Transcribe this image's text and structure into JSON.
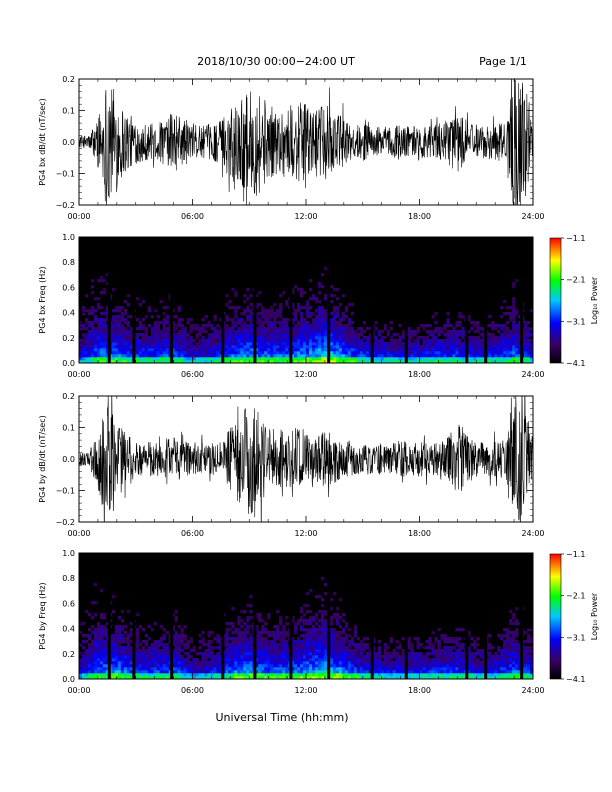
{
  "header": {
    "title": "2018/10/30  00:00−24:00 UT",
    "page": "Page 1/1"
  },
  "footer": {
    "xlabel": "Universal Time (hh:mm)"
  },
  "chart_data": [
    {
      "type": "line",
      "name": "bx-waveform",
      "ylabel": "PG4 bx dB/dt (nT/sec)",
      "xlim": [
        0,
        24
      ],
      "ylim": [
        -0.2,
        0.2
      ],
      "x_ticks": [
        "00:00",
        "06:00",
        "12:00",
        "18:00",
        "24:00"
      ],
      "y_ticks": [
        "−0.2",
        "−0.1",
        "0.0",
        "0.1",
        "0.2"
      ],
      "amplitude_envelope": {
        "x": [
          0,
          0.5,
          1.0,
          1.5,
          2.0,
          2.5,
          3.0,
          3.5,
          4.0,
          4.5,
          5.0,
          5.5,
          6.0,
          6.5,
          7.0,
          7.5,
          8.0,
          8.5,
          9.0,
          9.5,
          10.0,
          10.5,
          11.0,
          11.5,
          12.0,
          12.5,
          13.0,
          13.5,
          14.0,
          14.5,
          15.0,
          15.5,
          16.0,
          16.5,
          17.0,
          17.5,
          18.0,
          18.5,
          19.0,
          19.5,
          20.0,
          20.5,
          21.0,
          21.5,
          22.0,
          22.5,
          23.0,
          23.5,
          24.0
        ],
        "y": [
          0.02,
          0.02,
          0.08,
          0.22,
          0.16,
          0.1,
          0.07,
          0.06,
          0.06,
          0.07,
          0.1,
          0.08,
          0.06,
          0.05,
          0.06,
          0.07,
          0.12,
          0.14,
          0.16,
          0.18,
          0.12,
          0.1,
          0.12,
          0.13,
          0.12,
          0.1,
          0.12,
          0.1,
          0.08,
          0.05,
          0.06,
          0.05,
          0.05,
          0.05,
          0.06,
          0.05,
          0.06,
          0.05,
          0.06,
          0.07,
          0.1,
          0.07,
          0.06,
          0.05,
          0.06,
          0.06,
          0.22,
          0.2,
          0.08
        ]
      }
    },
    {
      "type": "heatmap",
      "name": "bx-spectrogram",
      "ylabel": "PG4 bx Freq (Hz)",
      "xlim": [
        0,
        24
      ],
      "ylim": [
        0,
        1.0
      ],
      "x_ticks": [
        "00:00",
        "06:00",
        "12:00",
        "18:00",
        "24:00"
      ],
      "y_ticks": [
        "0.0",
        "0.2",
        "0.4",
        "0.6",
        "0.8",
        "1.0"
      ],
      "colorbar": {
        "label": "Log₁₀ Power",
        "range": [
          -4.1,
          -1.1
        ],
        "ticks": [
          "−1.1",
          "−2.1",
          "−3.1",
          "−4.1"
        ]
      },
      "dropout_hours": [
        1.6,
        2.9,
        4.9,
        7.6,
        9.3,
        11.2,
        13.2,
        15.5,
        17.3,
        20.5,
        21.5,
        23.4
      ],
      "power_profile": {
        "x": [
          0,
          1,
          2,
          3,
          4,
          5,
          6,
          7,
          8,
          9,
          10,
          11,
          12,
          13,
          14,
          15,
          16,
          17,
          18,
          19,
          20,
          21,
          22,
          23,
          24
        ],
        "level": [
          0.3,
          0.5,
          0.5,
          0.45,
          0.45,
          0.5,
          0.35,
          0.4,
          0.5,
          0.55,
          0.5,
          0.5,
          0.55,
          0.6,
          0.55,
          0.45,
          0.4,
          0.4,
          0.4,
          0.45,
          0.45,
          0.4,
          0.4,
          0.5,
          0.4
        ],
        "extent_hz": [
          0.5,
          0.7,
          0.6,
          0.45,
          0.4,
          0.5,
          0.3,
          0.35,
          0.5,
          0.6,
          0.5,
          0.5,
          0.6,
          0.8,
          0.5,
          0.3,
          0.3,
          0.3,
          0.3,
          0.35,
          0.4,
          0.3,
          0.35,
          0.6,
          0.4
        ]
      }
    },
    {
      "type": "line",
      "name": "by-waveform",
      "ylabel": "PG4 by dB/dt (nT/sec)",
      "xlim": [
        0,
        24
      ],
      "ylim": [
        -0.2,
        0.2
      ],
      "x_ticks": [
        "00:00",
        "06:00",
        "12:00",
        "18:00",
        "24:00"
      ],
      "y_ticks": [
        "−0.2",
        "−0.1",
        "0.0",
        "0.1",
        "0.2"
      ],
      "amplitude_envelope": {
        "x": [
          0,
          0.5,
          1.0,
          1.5,
          2.0,
          2.5,
          3.0,
          3.5,
          4.0,
          4.5,
          5.0,
          5.5,
          6.0,
          6.5,
          7.0,
          7.5,
          8.0,
          8.5,
          9.0,
          9.5,
          10.0,
          10.5,
          11.0,
          11.5,
          12.0,
          12.5,
          13.0,
          13.5,
          14.0,
          14.5,
          15.0,
          15.5,
          16.0,
          16.5,
          17.0,
          17.5,
          18.0,
          18.5,
          19.0,
          19.5,
          20.0,
          20.5,
          21.0,
          21.5,
          22.0,
          22.5,
          23.0,
          23.5,
          24.0
        ],
        "y": [
          0.02,
          0.02,
          0.1,
          0.22,
          0.14,
          0.08,
          0.06,
          0.05,
          0.06,
          0.06,
          0.08,
          0.06,
          0.05,
          0.05,
          0.05,
          0.06,
          0.1,
          0.14,
          0.18,
          0.2,
          0.1,
          0.09,
          0.1,
          0.1,
          0.08,
          0.07,
          0.09,
          0.08,
          0.07,
          0.05,
          0.05,
          0.05,
          0.05,
          0.05,
          0.06,
          0.05,
          0.06,
          0.05,
          0.06,
          0.08,
          0.12,
          0.08,
          0.06,
          0.05,
          0.06,
          0.06,
          0.22,
          0.18,
          0.08
        ]
      }
    },
    {
      "type": "heatmap",
      "name": "by-spectrogram",
      "ylabel": "PG4 by Freq (Hz)",
      "xlim": [
        0,
        24
      ],
      "ylim": [
        0,
        1.0
      ],
      "x_ticks": [
        "00:00",
        "06:00",
        "12:00",
        "18:00",
        "24:00"
      ],
      "y_ticks": [
        "0.0",
        "0.2",
        "0.4",
        "0.6",
        "0.8",
        "1.0"
      ],
      "colorbar": {
        "label": "Log₁₀ Power",
        "range": [
          -4.1,
          -1.1
        ],
        "ticks": [
          "−1.1",
          "−2.1",
          "−3.1",
          "−4.1"
        ]
      },
      "dropout_hours": [
        1.6,
        2.9,
        4.9,
        7.6,
        9.3,
        11.2,
        13.2,
        15.5,
        17.3,
        20.5,
        21.5,
        23.4
      ],
      "power_profile": {
        "x": [
          0,
          1,
          2,
          3,
          4,
          5,
          6,
          7,
          8,
          9,
          10,
          11,
          12,
          13,
          14,
          15,
          16,
          17,
          18,
          19,
          20,
          21,
          22,
          23,
          24
        ],
        "level": [
          0.3,
          0.5,
          0.55,
          0.45,
          0.45,
          0.5,
          0.35,
          0.4,
          0.5,
          0.55,
          0.5,
          0.5,
          0.55,
          0.6,
          0.55,
          0.45,
          0.4,
          0.4,
          0.4,
          0.45,
          0.45,
          0.4,
          0.4,
          0.5,
          0.4
        ],
        "extent_hz": [
          0.5,
          0.7,
          0.6,
          0.45,
          0.4,
          0.5,
          0.3,
          0.35,
          0.5,
          0.6,
          0.5,
          0.5,
          0.6,
          0.8,
          0.5,
          0.3,
          0.3,
          0.3,
          0.3,
          0.35,
          0.4,
          0.3,
          0.35,
          0.6,
          0.4
        ]
      }
    }
  ]
}
